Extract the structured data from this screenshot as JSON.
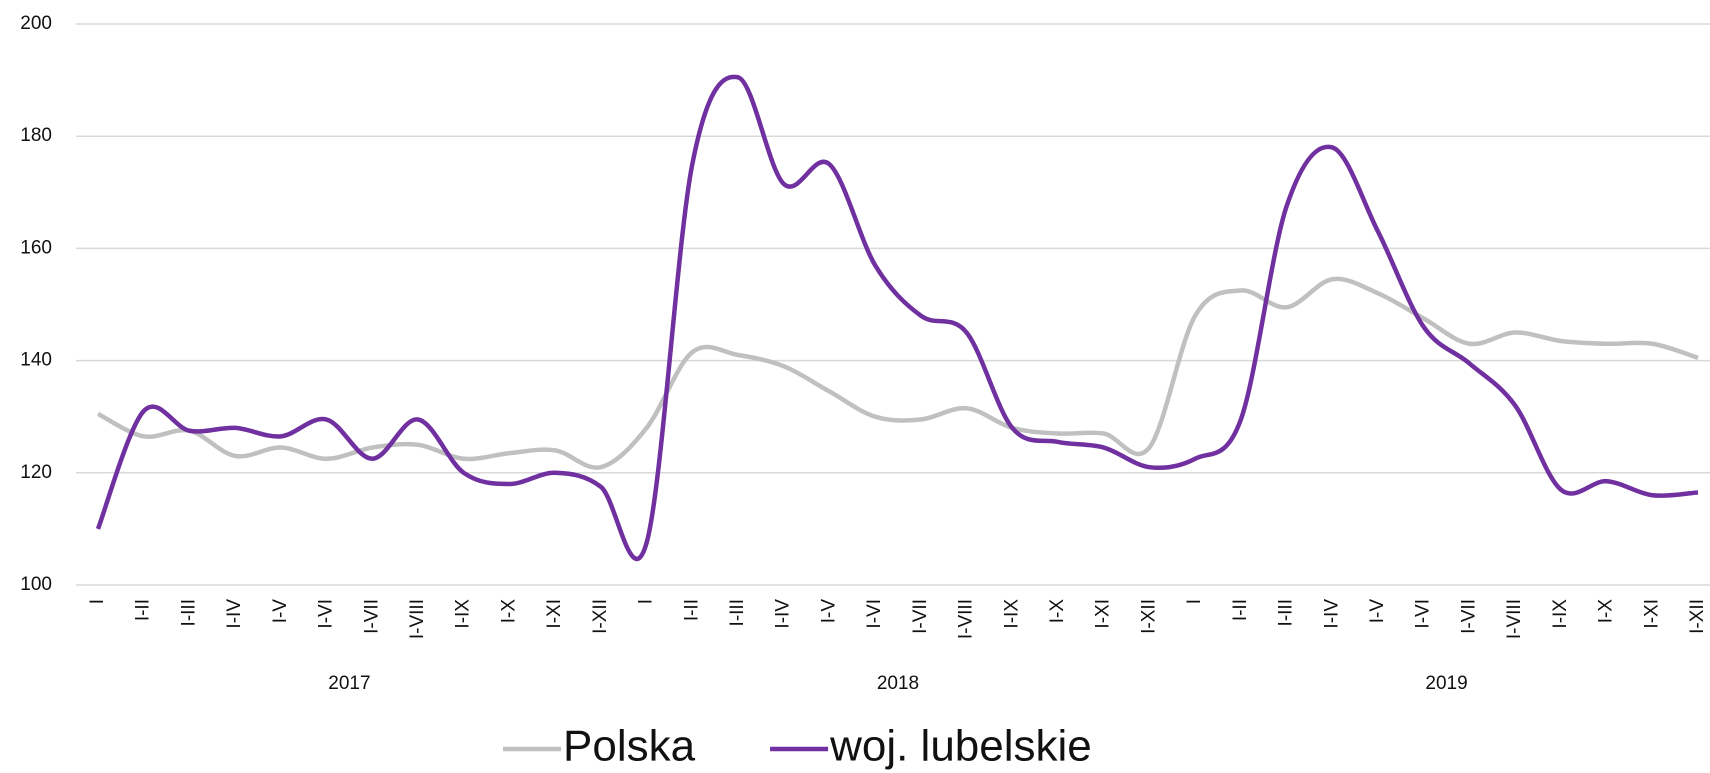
{
  "chart_data": {
    "type": "line",
    "categories": [
      "I",
      "I-II",
      "I-III",
      "I-IV",
      "I-V",
      "I-VI",
      "I-VII",
      "I-VIII",
      "I-IX",
      "I-X",
      "I-XI",
      "I-XII",
      "I",
      "I-II",
      "I-III",
      "I-IV",
      "I-V",
      "I-VI",
      "I-VII",
      "I-VIII",
      "I-IX",
      "I-X",
      "I-XI",
      "I-XII",
      "I",
      "I-II",
      "I-III",
      "I-IV",
      "I-V",
      "I-VI",
      "I-VII",
      "I-VIII",
      "I-IX",
      "I-X",
      "I-XI",
      "I-XII"
    ],
    "groups": [
      "2017",
      "2018",
      "2019"
    ],
    "series": [
      {
        "name": "Polska",
        "color": "#c0c0c0",
        "values": [
          130.5,
          126.5,
          127.5,
          123,
          124.5,
          122.5,
          124.5,
          125,
          122.5,
          123.5,
          124,
          121,
          128,
          141.5,
          141,
          139,
          134.5,
          130,
          129.5,
          131.5,
          128,
          127,
          127,
          124.5,
          148,
          152.5,
          149.5,
          154.5,
          152,
          147.5,
          143,
          145,
          143.5,
          143,
          143,
          140.5
        ]
      },
      {
        "name": "woj. lubelskie",
        "color": "#7030a0",
        "values": [
          110,
          131,
          127.5,
          128,
          126.5,
          129.5,
          122.5,
          129.5,
          120,
          118,
          120,
          117.5,
          107.5,
          175,
          190.5,
          171.5,
          175,
          157,
          148,
          145,
          128,
          125.5,
          124.5,
          121,
          122.5,
          129.5,
          167.5,
          178,
          163,
          146,
          139.5,
          132,
          117,
          118.5,
          116,
          116.5
        ]
      }
    ],
    "ylim": [
      100,
      200
    ],
    "yticks": [
      100,
      120,
      140,
      160,
      180,
      200
    ],
    "grid": true,
    "legend": "bottom"
  }
}
